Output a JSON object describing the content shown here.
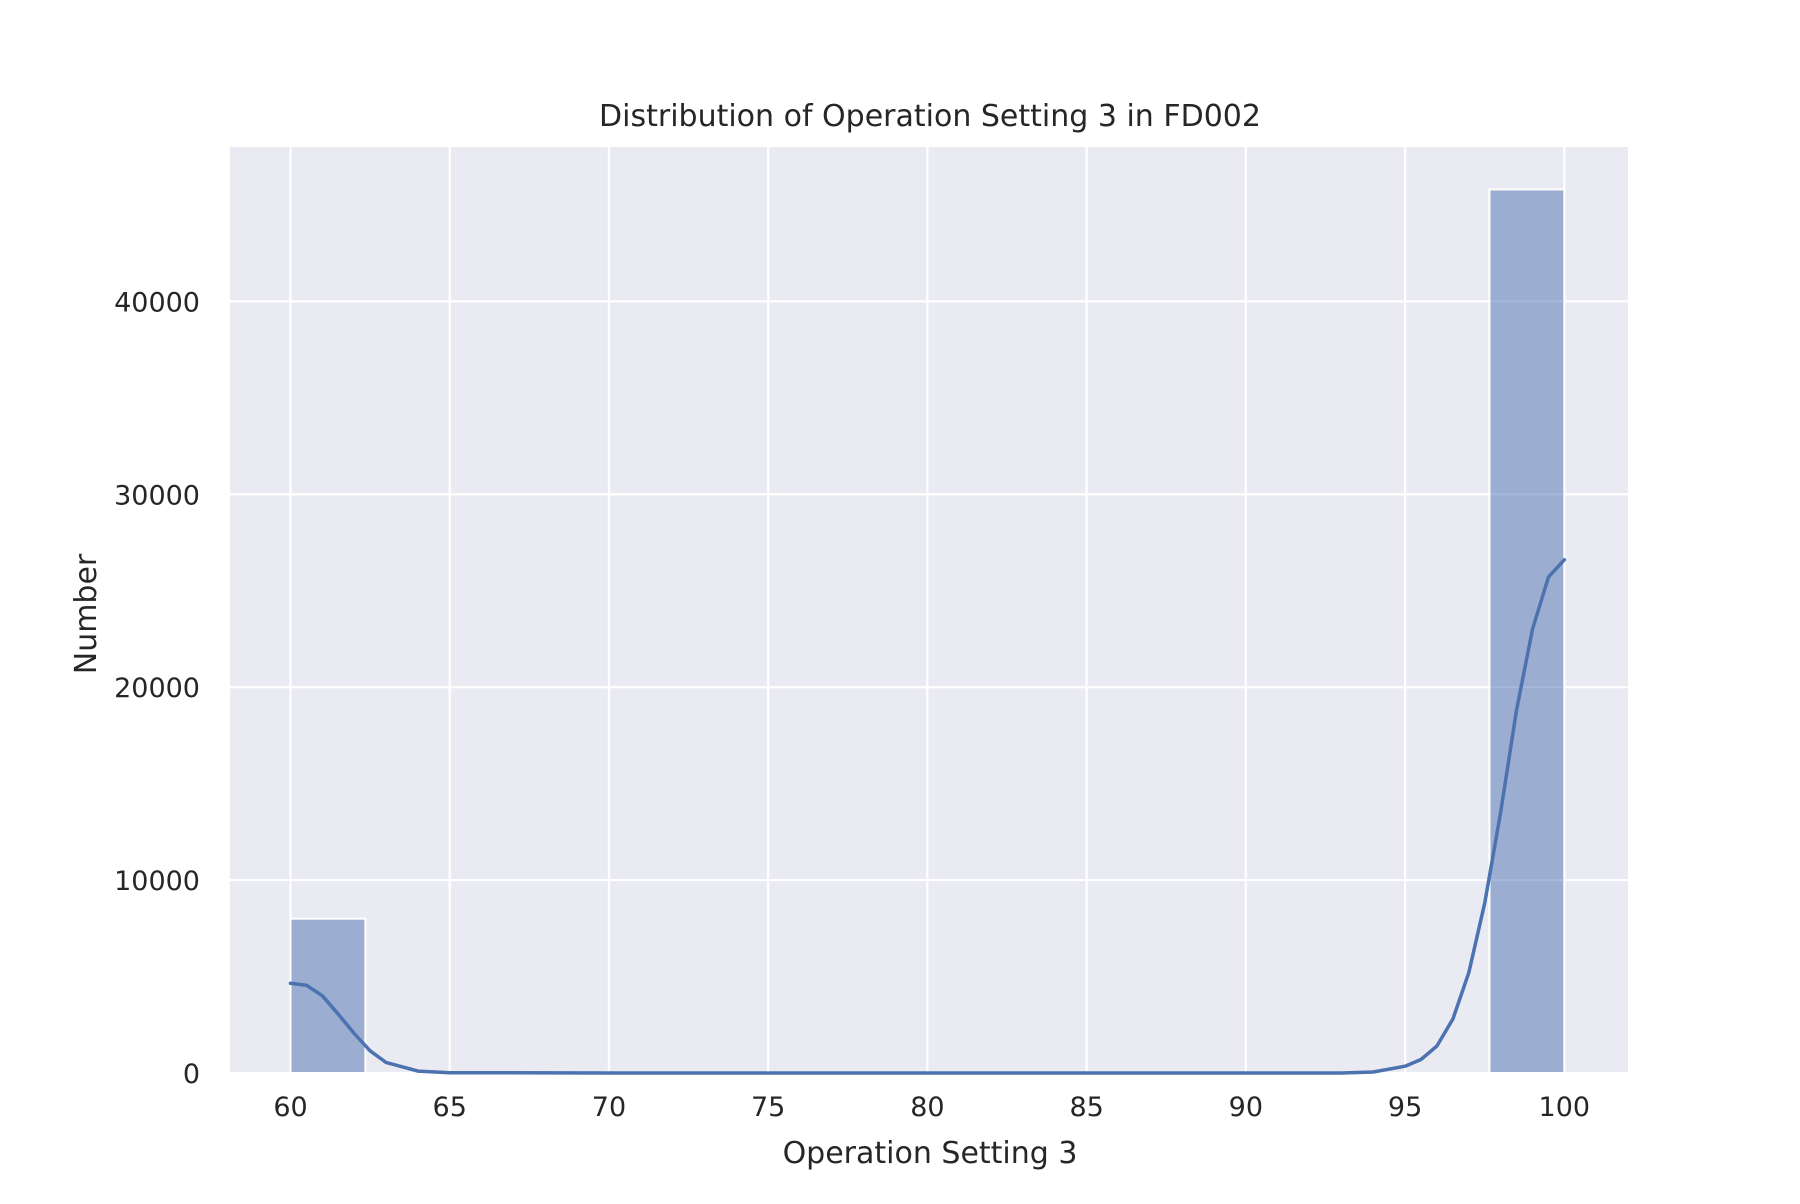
{
  "chart_data": {
    "type": "bar",
    "title": "Distribution of Operation Setting 3 in FD002",
    "xlabel": "Operation Setting 3",
    "ylabel": "Number",
    "xlim": [
      58.1,
      102.0
    ],
    "ylim": [
      0,
      48000
    ],
    "xticks": [
      60,
      65,
      70,
      75,
      80,
      85,
      90,
      95,
      100
    ],
    "yticks": [
      0,
      10000,
      20000,
      30000,
      40000
    ],
    "grid": true,
    "background": "#eaeaf2",
    "bar_color": "#4c72b0",
    "bars": [
      {
        "x0": 60.0,
        "x1": 62.35,
        "value": 8000
      },
      {
        "x0": 97.65,
        "x1": 100.0,
        "value": 45800
      }
    ],
    "kde": [
      {
        "x": 60.0,
        "y": 4650
      },
      {
        "x": 60.5,
        "y": 4550
      },
      {
        "x": 61.0,
        "y": 4000
      },
      {
        "x": 61.5,
        "y": 3050
      },
      {
        "x": 62.0,
        "y": 2050
      },
      {
        "x": 62.5,
        "y": 1150
      },
      {
        "x": 63.0,
        "y": 550
      },
      {
        "x": 64.0,
        "y": 100
      },
      {
        "x": 65.0,
        "y": 15
      },
      {
        "x": 70.0,
        "y": 0
      },
      {
        "x": 93.0,
        "y": 0
      },
      {
        "x": 94.0,
        "y": 50
      },
      {
        "x": 95.0,
        "y": 350
      },
      {
        "x": 95.5,
        "y": 700
      },
      {
        "x": 96.0,
        "y": 1400
      },
      {
        "x": 96.5,
        "y": 2800
      },
      {
        "x": 97.0,
        "y": 5200
      },
      {
        "x": 97.5,
        "y": 8800
      },
      {
        "x": 98.0,
        "y": 13500
      },
      {
        "x": 98.5,
        "y": 18800
      },
      {
        "x": 99.0,
        "y": 23000
      },
      {
        "x": 99.5,
        "y": 25700
      },
      {
        "x": 100.0,
        "y": 26600
      }
    ]
  }
}
